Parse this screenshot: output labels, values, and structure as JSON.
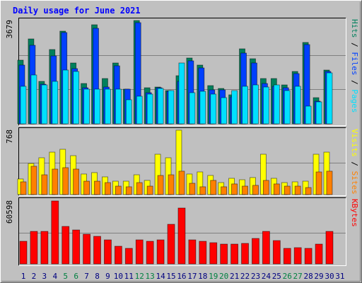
{
  "title": "Daily usage for June 2021",
  "legend_separator": " / ",
  "chart_data": [
    {
      "type": "bar",
      "ylim": [
        0,
        3679
      ],
      "yticks": [
        3679
      ],
      "grid_divisions": 3,
      "series": [
        {
          "name": "Hits",
          "color": "#00805c",
          "values": [
            2268,
            3024,
            1512,
            2646,
            3301,
            2167,
            1436,
            3528,
            1613,
            2167,
            1235,
            3679,
            1285,
            1310,
            1184,
            1714,
            2344,
            2092,
            1361,
            1260,
            1033,
            2671,
            2318,
            1613,
            1613,
            1386,
            1865,
            2898,
            932,
            1915,
            null
          ]
        },
        {
          "name": "Files",
          "color": "#0040ff",
          "values": [
            2092,
            2797,
            1411,
            2419,
            3251,
            1966,
            1285,
            3402,
            1310,
            2066,
            1235,
            3603,
            1109,
            1285,
            1159,
            1512,
            2243,
            1991,
            1209,
            1209,
            958,
            2520,
            2167,
            1436,
            1336,
            1285,
            1789,
            2822,
            806,
            1865,
            null
          ]
        },
        {
          "name": "Pages",
          "color": "#00e0ff",
          "values": [
            1336,
            1739,
            1386,
            1512,
            1915,
            1865,
            1235,
            1235,
            1235,
            1235,
            857,
            983,
            1058,
            1260,
            1184,
            2167,
            1109,
            1159,
            1058,
            932,
            1184,
            1336,
            1386,
            1310,
            1386,
            1184,
            1336,
            630,
            781,
            1814,
            null
          ]
        }
      ]
    },
    {
      "type": "bar",
      "ylim": [
        0,
        768
      ],
      "yticks": [
        768
      ],
      "grid_divisions": 2,
      "series": [
        {
          "name": "Visits",
          "color": "#ffff00",
          "values": [
            186,
            371,
            439,
            506,
            540,
            464,
            245,
            262,
            211,
            160,
            160,
            236,
            169,
            481,
            439,
            768,
            245,
            270,
            228,
            143,
            194,
            177,
            203,
            481,
            194,
            143,
            152,
            160,
            481,
            506,
            null
          ]
        },
        {
          "name": "Sites",
          "color": "#ff8000",
          "values": [
            152,
            338,
            236,
            304,
            321,
            304,
            160,
            160,
            143,
            101,
            93,
            143,
            101,
            228,
            236,
            279,
            135,
            93,
            169,
            93,
            127,
            101,
            110,
            169,
            127,
            101,
            101,
            84,
            270,
            279,
            null
          ]
        }
      ]
    },
    {
      "type": "bar",
      "ylim": [
        0,
        60598
      ],
      "yticks": [
        60598
      ],
      "grid_divisions": 2,
      "categories": [
        "1",
        "2",
        "3",
        "4",
        "5",
        "6",
        "7",
        "8",
        "9",
        "10",
        "11",
        "12",
        "13",
        "14",
        "15",
        "16",
        "17",
        "18",
        "19",
        "20",
        "21",
        "22",
        "23",
        "24",
        "25",
        "26",
        "27",
        "28",
        "29",
        "30",
        "31"
      ],
      "weekend_categories": [
        "5",
        "6",
        "12",
        "13",
        "19",
        "20",
        "26",
        "27"
      ],
      "weekday_color": "#000080",
      "weekend_color": "#008040",
      "series": [
        {
          "name": "KBytes",
          "color": "#ff0000",
          "values": [
            21788,
            31320,
            31320,
            60598,
            36087,
            32682,
            28597,
            26554,
            23150,
            17022,
            14979,
            23150,
            21788,
            23150,
            38129,
            53789,
            23150,
            21788,
            20426,
            19064,
            19064,
            19745,
            24511,
            31320,
            22469,
            14979,
            15660,
            14979,
            19064,
            31320,
            null
          ]
        }
      ]
    }
  ]
}
